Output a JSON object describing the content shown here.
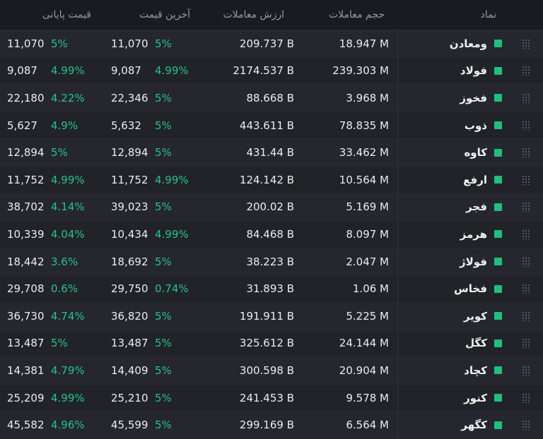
{
  "header": {
    "symbol": "نماد",
    "volume": "حجم معاملات",
    "value": "ارزش معاملات",
    "last_price": "آخرین قیمت",
    "final_price": "قیمت پایانی"
  },
  "accent_color": "#1fc07e",
  "rows": [
    {
      "symbol": "ومعادن",
      "volume": "18.947 M",
      "value": "209.737 B",
      "last": "11,070",
      "last_pct": "5%",
      "final": "11,070",
      "final_pct": "5%"
    },
    {
      "symbol": "فولاد",
      "volume": "239.303 M",
      "value": "2174.537 B",
      "last": "9,087",
      "last_pct": "4.99%",
      "final": "9,087",
      "final_pct": "4.99%"
    },
    {
      "symbol": "فخوز",
      "volume": "3.968 M",
      "value": "88.668 B",
      "last": "22,346",
      "last_pct": "5%",
      "final": "22,180",
      "final_pct": "4.22%"
    },
    {
      "symbol": "ذوب",
      "volume": "78.835 M",
      "value": "443.611 B",
      "last": "5,632",
      "last_pct": "5%",
      "final": "5,627",
      "final_pct": "4.9%"
    },
    {
      "symbol": "کاوه",
      "volume": "33.462 M",
      "value": "431.44 B",
      "last": "12,894",
      "last_pct": "5%",
      "final": "12,894",
      "final_pct": "5%"
    },
    {
      "symbol": "ارفع",
      "volume": "10.564 M",
      "value": "124.142 B",
      "last": "11,752",
      "last_pct": "4.99%",
      "final": "11,752",
      "final_pct": "4.99%"
    },
    {
      "symbol": "فجر",
      "volume": "5.169 M",
      "value": "200.02 B",
      "last": "39,023",
      "last_pct": "5%",
      "final": "38,702",
      "final_pct": "4.14%"
    },
    {
      "symbol": "هرمز",
      "volume": "8.097 M",
      "value": "84.468 B",
      "last": "10,434",
      "last_pct": "4.99%",
      "final": "10,339",
      "final_pct": "4.04%"
    },
    {
      "symbol": "فولاژ",
      "volume": "2.047 M",
      "value": "38.223 B",
      "last": "18,692",
      "last_pct": "5%",
      "final": "18,442",
      "final_pct": "3.6%"
    },
    {
      "symbol": "فخاس",
      "volume": "1.06 M",
      "value": "31.893 B",
      "last": "29,750",
      "last_pct": "0.74%",
      "final": "29,708",
      "final_pct": "0.6%"
    },
    {
      "symbol": "کویر",
      "volume": "5.225 M",
      "value": "191.911 B",
      "last": "36,820",
      "last_pct": "5%",
      "final": "36,730",
      "final_pct": "4.74%"
    },
    {
      "symbol": "کگل",
      "volume": "24.144 M",
      "value": "325.612 B",
      "last": "13,487",
      "last_pct": "5%",
      "final": "13,487",
      "final_pct": "5%"
    },
    {
      "symbol": "کچاد",
      "volume": "20.904 M",
      "value": "300.598 B",
      "last": "14,409",
      "last_pct": "5%",
      "final": "14,381",
      "final_pct": "4.79%"
    },
    {
      "symbol": "کنور",
      "volume": "9.578 M",
      "value": "241.453 B",
      "last": "25,210",
      "last_pct": "5%",
      "final": "25,209",
      "final_pct": "4.99%"
    },
    {
      "symbol": "کگهر",
      "volume": "6.564 M",
      "value": "299.169 B",
      "last": "45,599",
      "last_pct": "5%",
      "final": "45,582",
      "final_pct": "4.96%"
    }
  ]
}
